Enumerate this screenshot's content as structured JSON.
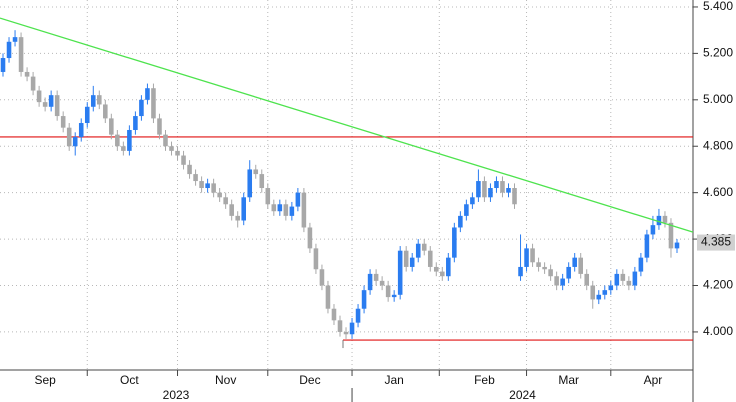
{
  "chart_data": {
    "type": "candlestick",
    "categories": [
      null,
      null,
      null,
      null,
      null,
      null,
      null,
      "Sep",
      null,
      null,
      null,
      null,
      null,
      null,
      null,
      null,
      null,
      null,
      null,
      null,
      null,
      "Oct",
      null,
      null,
      null,
      null,
      null,
      null,
      null,
      null,
      null,
      null,
      null,
      null,
      null,
      null,
      null,
      "Nov",
      null,
      null,
      null,
      null,
      null,
      null,
      null,
      null,
      null,
      null,
      null,
      null,
      null,
      "Dec",
      null,
      null,
      null,
      null,
      null,
      null,
      null,
      null,
      null,
      null,
      null,
      null,
      null,
      "Jan",
      null,
      null,
      null,
      null,
      null,
      null,
      null,
      null,
      null,
      null,
      null,
      null,
      null,
      null,
      "Feb",
      null,
      null,
      null,
      null,
      null,
      null,
      null,
      null,
      null,
      null,
      null,
      null,
      null,
      "Mar",
      null,
      null,
      null,
      null,
      null,
      null,
      null,
      null,
      null,
      null,
      null,
      null,
      null,
      "Apr",
      null,
      null,
      null,
      null
    ],
    "years": [
      "2023",
      "2024"
    ],
    "open": [
      5.12,
      5.18,
      5.25,
      5.27,
      5.12,
      5.1,
      5.04,
      4.99,
      4.97,
      5.02,
      4.93,
      4.88,
      4.8,
      4.84,
      4.9,
      4.97,
      5.02,
      4.98,
      4.92,
      4.85,
      4.8,
      4.78,
      4.87,
      4.93,
      5.0,
      5.05,
      4.92,
      4.85,
      4.8,
      4.78,
      4.76,
      4.72,
      4.68,
      4.65,
      4.62,
      4.64,
      4.6,
      4.58,
      4.55,
      4.5,
      4.48,
      4.58,
      4.7,
      4.68,
      4.62,
      4.55,
      4.52,
      4.55,
      4.5,
      4.54,
      4.6,
      4.45,
      4.36,
      4.27,
      4.2,
      4.1,
      4.05,
      4.0,
      3.99,
      4.04,
      4.1,
      4.18,
      4.25,
      4.22,
      4.2,
      4.15,
      4.16,
      4.35,
      4.28,
      4.32,
      4.38,
      4.35,
      4.28,
      4.26,
      4.24,
      4.32,
      4.45,
      4.5,
      4.55,
      4.58,
      4.65,
      4.58,
      4.62,
      4.65,
      4.6,
      4.62,
      4.24,
      4.28,
      4.36,
      4.3,
      4.28,
      4.27,
      4.24,
      4.2,
      4.23,
      4.28,
      4.32,
      4.25,
      4.2,
      4.14,
      4.16,
      4.18,
      4.2,
      4.25,
      4.22,
      4.2,
      4.26,
      4.32,
      4.42,
      4.46,
      4.5,
      4.47,
      4.36
    ],
    "high": [
      5.2,
      5.27,
      5.3,
      5.29,
      5.14,
      5.12,
      5.06,
      5.01,
      5.04,
      5.04,
      4.95,
      4.9,
      4.86,
      4.92,
      4.99,
      5.06,
      5.04,
      5.0,
      4.94,
      4.87,
      4.82,
      4.89,
      4.95,
      5.02,
      5.07,
      5.07,
      4.94,
      4.87,
      4.82,
      4.8,
      4.78,
      4.74,
      4.7,
      4.67,
      4.66,
      4.66,
      4.62,
      4.6,
      4.57,
      4.52,
      4.6,
      4.74,
      4.72,
      4.7,
      4.64,
      4.57,
      4.57,
      4.57,
      4.56,
      4.62,
      4.62,
      4.47,
      4.38,
      4.29,
      4.22,
      4.12,
      4.07,
      4.02,
      4.06,
      4.12,
      4.2,
      4.27,
      4.27,
      4.24,
      4.22,
      4.18,
      4.37,
      4.37,
      4.34,
      4.4,
      4.4,
      4.37,
      4.3,
      4.28,
      4.34,
      4.47,
      4.52,
      4.57,
      4.6,
      4.7,
      4.67,
      4.64,
      4.67,
      4.67,
      4.64,
      4.64,
      4.42,
      4.38,
      4.38,
      4.32,
      4.3,
      4.29,
      4.26,
      4.25,
      4.3,
      4.34,
      4.34,
      4.27,
      4.22,
      4.18,
      4.2,
      4.22,
      4.27,
      4.27,
      4.24,
      4.28,
      4.34,
      4.44,
      4.5,
      4.53,
      4.52,
      4.49,
      4.4
    ],
    "low": [
      5.1,
      5.16,
      5.23,
      5.1,
      5.08,
      5.02,
      4.97,
      4.95,
      4.95,
      4.91,
      4.86,
      4.78,
      4.76,
      4.82,
      4.88,
      4.95,
      4.96,
      4.9,
      4.83,
      4.78,
      4.76,
      4.76,
      4.85,
      4.91,
      4.98,
      4.9,
      4.83,
      4.78,
      4.76,
      4.74,
      4.7,
      4.66,
      4.63,
      4.6,
      4.6,
      4.58,
      4.56,
      4.53,
      4.48,
      4.45,
      4.46,
      4.56,
      4.66,
      4.6,
      4.53,
      4.5,
      4.5,
      4.48,
      4.48,
      4.52,
      4.43,
      4.34,
      4.25,
      4.18,
      4.08,
      4.03,
      3.98,
      3.97,
      3.97,
      4.02,
      4.08,
      4.16,
      4.2,
      4.18,
      4.13,
      4.13,
      4.14,
      4.26,
      4.26,
      4.3,
      4.33,
      4.26,
      4.24,
      4.22,
      4.22,
      4.3,
      4.43,
      4.48,
      4.53,
      4.56,
      4.56,
      4.56,
      4.6,
      4.58,
      4.58,
      4.53,
      4.22,
      4.26,
      4.28,
      4.26,
      4.25,
      4.22,
      4.18,
      4.18,
      4.21,
      4.26,
      4.23,
      4.18,
      4.1,
      4.12,
      4.14,
      4.16,
      4.18,
      4.2,
      4.18,
      4.18,
      4.24,
      4.3,
      4.4,
      4.44,
      4.45,
      4.32,
      4.34
    ],
    "close": [
      5.18,
      5.25,
      5.27,
      5.12,
      5.1,
      5.04,
      4.99,
      4.97,
      5.02,
      4.93,
      4.88,
      4.8,
      4.84,
      4.9,
      4.97,
      5.02,
      4.98,
      4.92,
      4.85,
      4.8,
      4.78,
      4.87,
      4.93,
      5.0,
      5.05,
      4.92,
      4.85,
      4.8,
      4.78,
      4.76,
      4.72,
      4.68,
      4.65,
      4.62,
      4.64,
      4.6,
      4.58,
      4.55,
      4.5,
      4.48,
      4.58,
      4.7,
      4.68,
      4.62,
      4.55,
      4.52,
      4.55,
      4.5,
      4.54,
      4.6,
      4.45,
      4.36,
      4.27,
      4.2,
      4.1,
      4.05,
      4.0,
      3.99,
      4.04,
      4.1,
      4.18,
      4.25,
      4.22,
      4.2,
      4.15,
      4.16,
      4.35,
      4.28,
      4.32,
      4.38,
      4.35,
      4.28,
      4.26,
      4.24,
      4.32,
      4.45,
      4.5,
      4.55,
      4.58,
      4.65,
      4.58,
      4.62,
      4.65,
      4.6,
      4.62,
      4.55,
      4.28,
      4.36,
      4.3,
      4.28,
      4.27,
      4.24,
      4.2,
      4.23,
      4.28,
      4.32,
      4.25,
      4.2,
      4.14,
      4.16,
      4.18,
      4.2,
      4.25,
      4.22,
      4.2,
      4.26,
      4.32,
      4.42,
      4.46,
      4.5,
      4.47,
      4.36,
      4.385
    ],
    "up_color": "#2a7cf0",
    "down_color": "#a8a8a8",
    "last_value": 4.385,
    "trend_line": {
      "values": [
        5.352,
        4.43
      ],
      "color": "#4ee34e"
    },
    "levels": [
      {
        "value": 4.84,
        "color": "#e01010"
      },
      {
        "value": 3.965,
        "color": "#e01010",
        "from": 57
      }
    ],
    "ylim": [
      3.836,
      5.43
    ],
    "yticks": [
      {
        "value": 4.0,
        "label": "4.000"
      },
      {
        "value": 4.2,
        "label": "4.200"
      },
      {
        "value": 4.4,
        "label": "4.400"
      },
      {
        "value": 4.6,
        "label": "4.600"
      },
      {
        "value": 4.8,
        "label": "4.800"
      },
      {
        "value": 5.0,
        "label": "5.000"
      },
      {
        "value": 5.2,
        "label": "5.200"
      },
      {
        "value": 5.4,
        "label": "5.400"
      }
    ],
    "grid": true
  }
}
